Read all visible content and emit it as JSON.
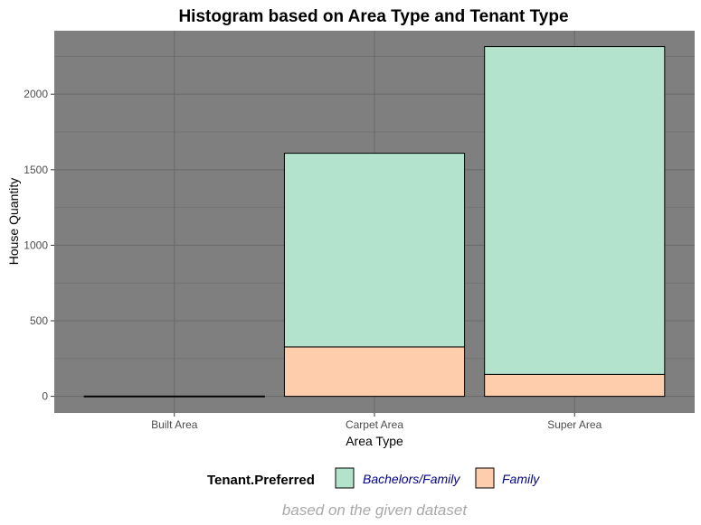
{
  "chart_data": {
    "type": "bar",
    "stacked": true,
    "title": "Histogram based on Area Type and Tenant Type",
    "xlabel": "Area Type",
    "ylabel": "House Quantity",
    "categories": [
      "Built Area",
      "Carpet Area",
      "Super Area"
    ],
    "yticks": [
      0,
      500,
      1000,
      1500,
      2000
    ],
    "ylim": [
      -110,
      2420
    ],
    "grid": true,
    "panel_background": "#7f7f7f",
    "legend_position": "bottom",
    "legend_title": "Tenant.Preferred",
    "series": [
      {
        "name": "Bachelors/Family",
        "color": "#b3e2cd",
        "values": [
          2,
          1282,
          2170
        ]
      },
      {
        "name": "Family",
        "color": "#fdcdac",
        "values": [
          0,
          327,
          145
        ]
      }
    ],
    "caption": "based on the given dataset"
  }
}
